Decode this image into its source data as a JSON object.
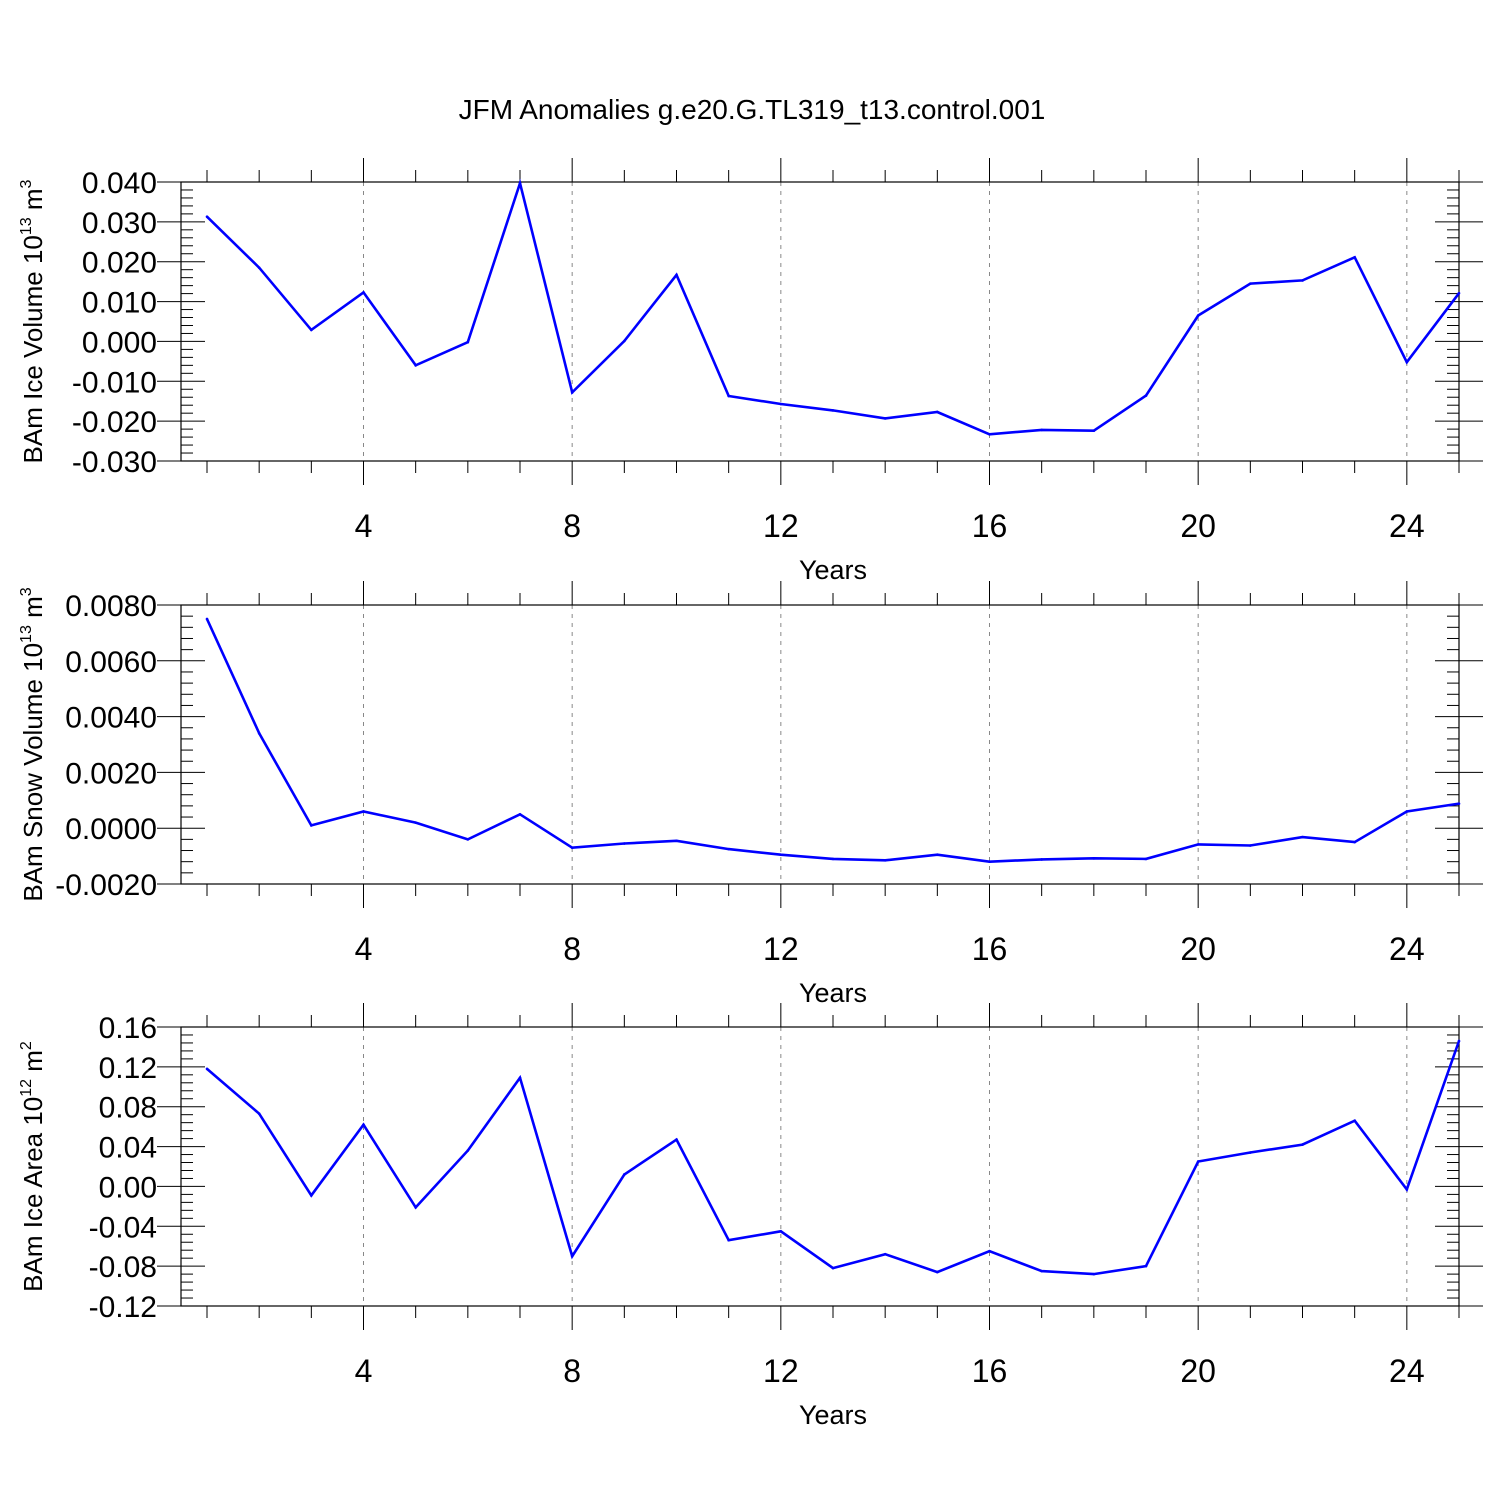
{
  "figure": {
    "title": "JFM Anomalies g.e20.G.TL319_t13.control.001",
    "line_color": "#0000ff",
    "grid_color": "#888888"
  },
  "chart_data": [
    {
      "type": "line",
      "ylabel": "BAm Ice Volume 10",
      "ylabel_exp": "13",
      "ylabel_unit": " m",
      "ylabel_unit_exp": "3",
      "xlabel": "Years",
      "xlim": [
        1,
        25
      ],
      "ylim": [
        -0.03,
        0.04
      ],
      "xticks": [
        4,
        8,
        12,
        16,
        20,
        24
      ],
      "xtick_labels": [
        "4",
        "8",
        "12",
        "16",
        "20",
        "24"
      ],
      "yticks": [
        -0.03,
        -0.02,
        -0.01,
        0.0,
        0.01,
        0.02,
        0.03,
        0.04
      ],
      "ytick_labels": [
        "-0.030",
        "-0.020",
        "-0.010",
        "0.000",
        "0.010",
        "0.020",
        "0.030",
        "0.040"
      ],
      "grid": "vertical dashed at major x ticks",
      "series": [
        {
          "x": [
            1,
            2,
            3,
            4,
            5,
            6,
            7,
            8,
            9,
            10,
            11,
            12,
            13,
            14,
            15,
            16,
            17,
            18,
            19,
            20,
            21,
            22,
            23,
            24,
            25
          ],
          "values": [
            0.0313,
            0.0185,
            0.0029,
            0.0123,
            -0.006,
            -0.0002,
            0.0397,
            -0.0128,
            0.0001,
            0.0167,
            -0.0137,
            -0.0157,
            -0.0173,
            -0.0193,
            -0.0177,
            -0.0233,
            -0.0222,
            -0.0224,
            -0.0136,
            0.0065,
            0.0145,
            0.0153,
            0.0211,
            -0.0052,
            0.0121
          ]
        }
      ]
    },
    {
      "type": "line",
      "ylabel": "BAm Snow Volume 10",
      "ylabel_exp": "13",
      "ylabel_unit": " m",
      "ylabel_unit_exp": "3",
      "xlabel": "Years",
      "xlim": [
        1,
        25
      ],
      "ylim": [
        -0.002,
        0.008
      ],
      "xticks": [
        4,
        8,
        12,
        16,
        20,
        24
      ],
      "xtick_labels": [
        "4",
        "8",
        "12",
        "16",
        "20",
        "24"
      ],
      "yticks": [
        -0.002,
        0.0,
        0.002,
        0.004,
        0.006,
        0.008
      ],
      "ytick_labels": [
        "-0.0020",
        "0.0000",
        "0.0020",
        "0.0040",
        "0.0060",
        "0.0080"
      ],
      "grid": "vertical dashed at major x ticks",
      "series": [
        {
          "x": [
            1,
            2,
            3,
            4,
            5,
            6,
            7,
            8,
            9,
            10,
            11,
            12,
            13,
            14,
            15,
            16,
            17,
            18,
            19,
            20,
            21,
            22,
            23,
            24,
            25
          ],
          "values": [
            0.0075,
            0.0034,
            0.0001,
            0.0006,
            0.0002,
            -0.0004,
            0.0005,
            -0.0007,
            -0.00055,
            -0.00045,
            -0.00075,
            -0.00095,
            -0.0011,
            -0.00115,
            -0.00095,
            -0.0012,
            -0.00112,
            -0.00108,
            -0.0011,
            -0.00058,
            -0.00062,
            -0.00032,
            -0.0005,
            0.0006,
            0.00088
          ]
        }
      ]
    },
    {
      "type": "line",
      "ylabel": "BAm Ice Area 10",
      "ylabel_exp": "12",
      "ylabel_unit": " m",
      "ylabel_unit_exp": "2",
      "xlabel": "Years",
      "xlim": [
        1,
        25
      ],
      "ylim": [
        -0.12,
        0.16
      ],
      "xticks": [
        4,
        8,
        12,
        16,
        20,
        24
      ],
      "xtick_labels": [
        "4",
        "8",
        "12",
        "16",
        "20",
        "24"
      ],
      "yticks": [
        -0.12,
        -0.08,
        -0.04,
        0.0,
        0.04,
        0.08,
        0.12,
        0.16
      ],
      "ytick_labels": [
        "-0.12",
        "-0.08",
        "-0.04",
        "0.00",
        "0.04",
        "0.08",
        "0.12",
        "0.16"
      ],
      "grid": "vertical dashed at major x ticks",
      "series": [
        {
          "x": [
            1,
            2,
            3,
            4,
            5,
            6,
            7,
            8,
            9,
            10,
            11,
            12,
            13,
            14,
            15,
            16,
            17,
            18,
            19,
            20,
            21,
            22,
            23,
            24,
            25
          ],
          "values": [
            0.118,
            0.073,
            -0.009,
            0.062,
            -0.021,
            0.036,
            0.109,
            -0.07,
            0.012,
            0.047,
            -0.054,
            -0.045,
            -0.082,
            -0.068,
            -0.086,
            -0.065,
            -0.085,
            -0.088,
            -0.08,
            0.025,
            0.034,
            0.042,
            0.066,
            -0.003,
            0.146
          ]
        }
      ]
    }
  ]
}
